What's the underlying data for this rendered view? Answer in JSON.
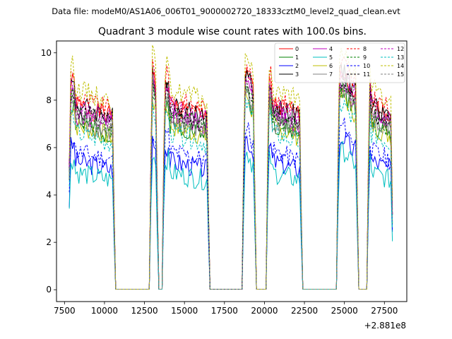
{
  "figure": {
    "suptitle": "Data file: modeM0/AS1A06_006T01_9000002720_18333cztM0_level2_quad_clean.evt",
    "offset_label": "+2.881e8"
  },
  "chart_data": {
    "type": "line",
    "title": "Quadrant 3 module wise count rates with 100.0s bins.",
    "xlabel": "",
    "ylabel": "",
    "x_offset": 288100000,
    "xlim": [
      7000,
      28900
    ],
    "ylim": [
      -0.5,
      10.5
    ],
    "xticks": [
      7500,
      10000,
      12500,
      15000,
      17500,
      20000,
      22500,
      25000,
      27500
    ],
    "yticks": [
      0,
      2,
      4,
      6,
      8,
      10
    ],
    "grid": false,
    "legend_position": "top-right",
    "on_intervals": [
      [
        7800,
        10600
      ],
      [
        12900,
        13300
      ],
      [
        13700,
        16500
      ],
      [
        18700,
        19400
      ],
      [
        20200,
        22300
      ],
      [
        24600,
        25800
      ],
      [
        26500,
        28000
      ]
    ],
    "zero_level": 0.02,
    "series": [
      {
        "name": "0",
        "color": "#ff0000",
        "style": "solid",
        "level": 7.9,
        "seed": 1
      },
      {
        "name": "1",
        "color": "#008000",
        "style": "solid",
        "level": 7.1,
        "seed": 2
      },
      {
        "name": "2",
        "color": "#0000ff",
        "style": "solid",
        "level": 5.5,
        "seed": 3
      },
      {
        "name": "3",
        "color": "#000000",
        "style": "solid",
        "level": 7.9,
        "seed": 4
      },
      {
        "name": "4",
        "color": "#bf00bf",
        "style": "solid",
        "level": 7.5,
        "seed": 5
      },
      {
        "name": "5",
        "color": "#00bfbf",
        "style": "solid",
        "level": 5.0,
        "seed": 6
      },
      {
        "name": "6",
        "color": "#bfbf00",
        "style": "solid",
        "level": 7.0,
        "seed": 7
      },
      {
        "name": "7",
        "color": "#808080",
        "style": "solid",
        "level": 7.2,
        "seed": 8
      },
      {
        "name": "8",
        "color": "#ff0000",
        "style": "dashed",
        "level": 8.2,
        "seed": 9
      },
      {
        "name": "9",
        "color": "#008000",
        "style": "dashed",
        "level": 7.4,
        "seed": 10
      },
      {
        "name": "10",
        "color": "#0000ff",
        "style": "dashed",
        "level": 5.9,
        "seed": 11
      },
      {
        "name": "11",
        "color": "#000000",
        "style": "dashed",
        "level": 7.6,
        "seed": 12
      },
      {
        "name": "12",
        "color": "#bf00bf",
        "style": "dashed",
        "level": 7.8,
        "seed": 13
      },
      {
        "name": "13",
        "color": "#00bfbf",
        "style": "dashed",
        "level": 6.7,
        "seed": 14
      },
      {
        "name": "14",
        "color": "#bfbf00",
        "style": "dashed",
        "level": 8.6,
        "seed": 15
      },
      {
        "name": "15",
        "color": "#808080",
        "style": "dashed",
        "level": 7.4,
        "seed": 16
      }
    ]
  }
}
